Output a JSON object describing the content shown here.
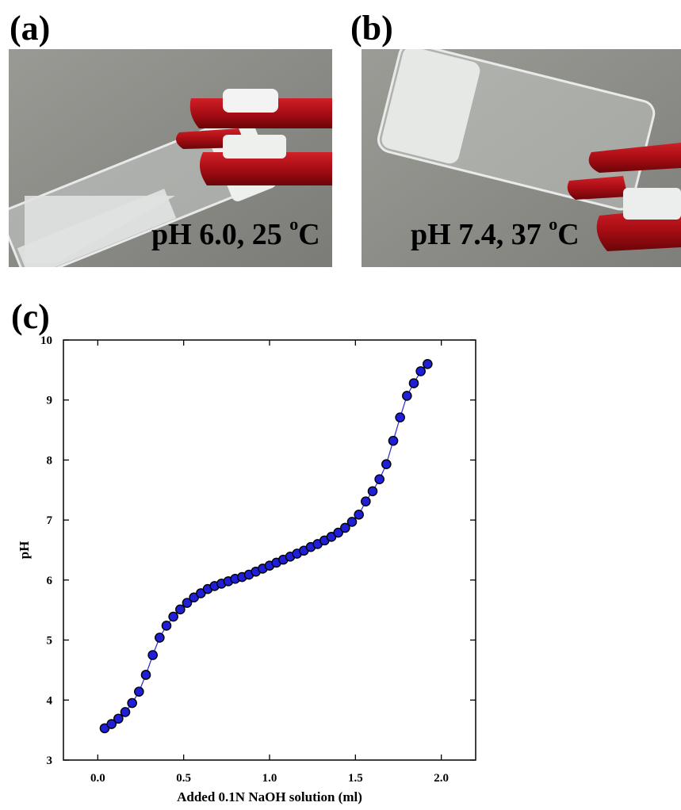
{
  "panels": {
    "a": {
      "label": "(a)",
      "caption_main": "pH 6.0, 25 ",
      "caption_sup": "o",
      "caption_end": "C"
    },
    "b": {
      "label": "(b)",
      "caption_main": "pH 7.4, 37 ",
      "caption_sup": "o",
      "caption_end": "C"
    },
    "c": {
      "label": "(c)"
    }
  },
  "colors": {
    "marker_fill": "#1f1fd8",
    "marker_edge": "#000000",
    "line": "#2a2acc",
    "photo_bg": "#8a8a86",
    "clamp_red": "#b01018"
  },
  "chart_data": {
    "type": "scatter",
    "xlabel": "Added 0.1N NaOH solution (ml)",
    "ylabel": "pH",
    "xlim": [
      -0.2,
      2.2
    ],
    "ylim": [
      3,
      10
    ],
    "xticks": [
      0.0,
      0.5,
      1.0,
      1.5,
      2.0
    ],
    "xtick_labels": [
      "0.0",
      "0.5",
      "1.0",
      "1.5",
      "2.0"
    ],
    "yticks": [
      3,
      4,
      5,
      6,
      7,
      8,
      9,
      10
    ],
    "ytick_labels": [
      "3",
      "4",
      "5",
      "6",
      "7",
      "8",
      "9",
      "10"
    ],
    "grid": false,
    "series": [
      {
        "x": [
          0.04,
          0.08,
          0.12,
          0.16,
          0.2,
          0.24,
          0.28,
          0.32,
          0.36,
          0.4,
          0.44,
          0.48,
          0.52,
          0.56,
          0.6,
          0.64,
          0.68,
          0.72,
          0.76,
          0.8,
          0.84,
          0.88,
          0.92,
          0.96,
          1.0,
          1.04,
          1.08,
          1.12,
          1.16,
          1.2,
          1.24,
          1.28,
          1.32,
          1.36,
          1.4,
          1.44,
          1.48,
          1.52,
          1.56,
          1.6,
          1.64,
          1.68,
          1.72,
          1.76,
          1.8,
          1.84,
          1.88,
          1.92
        ],
        "y": [
          3.53,
          3.6,
          3.69,
          3.8,
          3.95,
          4.14,
          4.42,
          4.75,
          5.04,
          5.24,
          5.39,
          5.51,
          5.62,
          5.71,
          5.78,
          5.85,
          5.9,
          5.94,
          5.98,
          6.02,
          6.05,
          6.09,
          6.14,
          6.19,
          6.24,
          6.29,
          6.34,
          6.39,
          6.44,
          6.49,
          6.55,
          6.6,
          6.66,
          6.72,
          6.79,
          6.87,
          6.97,
          7.09,
          7.31,
          7.48,
          7.68,
          7.93,
          8.32,
          8.71,
          9.07,
          9.28,
          9.48,
          9.6
        ]
      }
    ]
  }
}
